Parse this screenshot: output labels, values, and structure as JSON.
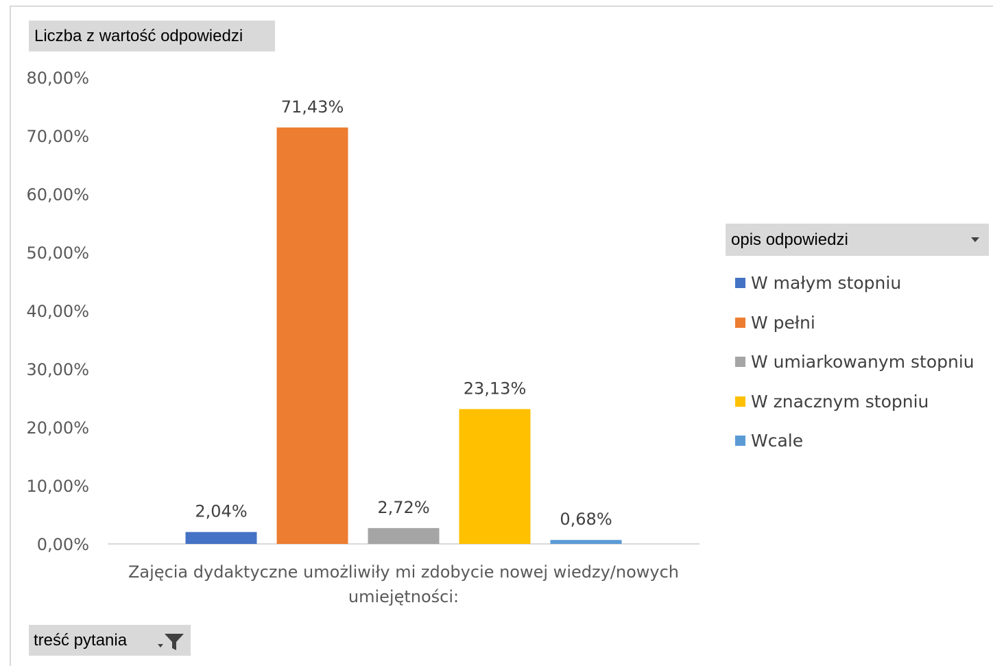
{
  "fields": {
    "value_field": "Liczba z wartość odpowiedzi",
    "filter_field": "treść pytania",
    "legend_field": "opis odpowiedzi"
  },
  "chart_data": {
    "type": "bar",
    "title": "",
    "xlabel": "",
    "ylabel": "",
    "categories": [
      "Zajęcia dydaktyczne umożliwiły mi zdobycie nowej wiedzy/nowych umiejętności:"
    ],
    "category_label_lines": [
      "Zajęcia dydaktyczne umożliwiły mi zdobycie nowej wiedzy/nowych",
      "umiejętności:"
    ],
    "ylim": [
      0,
      80
    ],
    "y_ticks": [
      "0,00%",
      "10,00%",
      "20,00%",
      "30,00%",
      "40,00%",
      "50,00%",
      "60,00%",
      "70,00%",
      "80,00%"
    ],
    "grid": false,
    "legend_position": "right",
    "series": [
      {
        "name": "W małym stopniu",
        "values": [
          2.04
        ],
        "label": "2,04%",
        "color": "#4472C4"
      },
      {
        "name": "W pełni",
        "values": [
          71.43
        ],
        "label": "71,43%",
        "color": "#ED7D31"
      },
      {
        "name": "W umiarkowanym stopniu",
        "values": [
          2.72
        ],
        "label": "2,72%",
        "color": "#A5A5A5"
      },
      {
        "name": "W znacznym stopniu",
        "values": [
          23.13
        ],
        "label": "23,13%",
        "color": "#FFC000"
      },
      {
        "name": "Wcale",
        "values": [
          0.68
        ],
        "label": "0,68%",
        "color": "#5B9BD5"
      }
    ]
  }
}
